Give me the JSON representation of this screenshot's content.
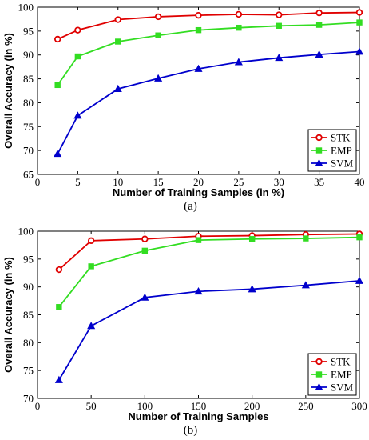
{
  "chart_data": [
    {
      "type": "line",
      "caption": "(a)",
      "xlabel": "Number of Training Samples (in %)",
      "ylabel": "Overall Accuracy (in %)",
      "xlim": [
        0,
        40
      ],
      "ylim": [
        65,
        100
      ],
      "xticks": [
        0,
        5,
        10,
        15,
        20,
        25,
        30,
        35,
        40
      ],
      "yticks": [
        65,
        70,
        75,
        80,
        85,
        90,
        95,
        100
      ],
      "grid": false,
      "legend_position": "bottom-right",
      "x": [
        2.5,
        5,
        10,
        15,
        20,
        25,
        30,
        35,
        40
      ],
      "series": [
        {
          "name": "STK",
          "color": "#e00000",
          "marker": "circle",
          "values": [
            93.3,
            95.2,
            97.4,
            98.0,
            98.3,
            98.5,
            98.4,
            98.8,
            98.9
          ]
        },
        {
          "name": "EMP",
          "color": "#33dd22",
          "marker": "square",
          "values": [
            83.7,
            89.7,
            92.8,
            94.1,
            95.2,
            95.7,
            96.1,
            96.3,
            96.8
          ]
        },
        {
          "name": "SVM",
          "color": "#0000cc",
          "marker": "triangle",
          "values": [
            69.3,
            77.3,
            82.9,
            85.1,
            87.1,
            88.5,
            89.4,
            90.1,
            90.7
          ]
        }
      ]
    },
    {
      "type": "line",
      "caption": "(b)",
      "xlabel": "Number of Training Samples",
      "ylabel": "Overall Accuracy (in %)",
      "xlim": [
        0,
        300
      ],
      "ylim": [
        70,
        100
      ],
      "xticks": [
        0,
        50,
        100,
        150,
        200,
        250,
        300
      ],
      "yticks": [
        70,
        75,
        80,
        85,
        90,
        95,
        100
      ],
      "grid": false,
      "legend_position": "bottom-right",
      "x": [
        20,
        50,
        100,
        150,
        200,
        250,
        300
      ],
      "series": [
        {
          "name": "STK",
          "color": "#e00000",
          "marker": "circle",
          "values": [
            93.1,
            98.3,
            98.6,
            99.1,
            99.2,
            99.4,
            99.5
          ]
        },
        {
          "name": "EMP",
          "color": "#33dd22",
          "marker": "square",
          "values": [
            86.4,
            93.7,
            96.5,
            98.4,
            98.6,
            98.7,
            98.9
          ]
        },
        {
          "name": "SVM",
          "color": "#0000cc",
          "marker": "triangle",
          "values": [
            73.3,
            83.0,
            88.1,
            89.2,
            89.6,
            90.3,
            91.1
          ]
        }
      ]
    }
  ]
}
